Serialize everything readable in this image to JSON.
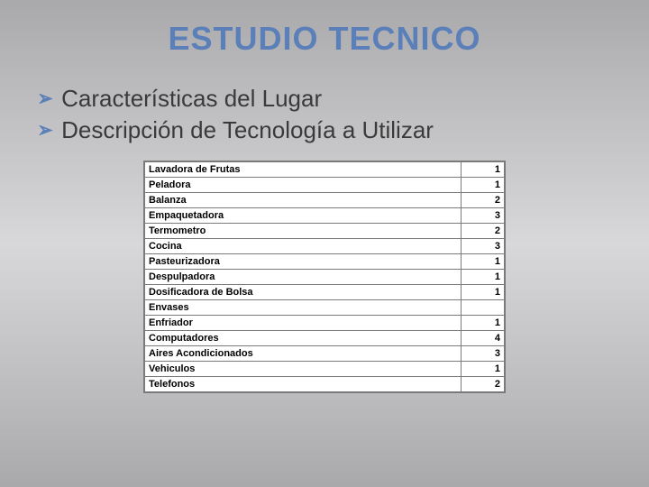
{
  "title": "ESTUDIO TECNICO",
  "bullets": [
    "Características del Lugar",
    "Descripción de Tecnología a Utilizar"
  ],
  "table": {
    "type": "table",
    "columns": [
      "name",
      "qty"
    ],
    "rows": [
      [
        "Lavadora de Frutas",
        "1"
      ],
      [
        "Peladora",
        "1"
      ],
      [
        "Balanza",
        "2"
      ],
      [
        "Empaquetadora",
        "3"
      ],
      [
        "Termometro",
        "2"
      ],
      [
        "Cocina",
        "3"
      ],
      [
        "Pasteurizadora",
        "1"
      ],
      [
        "Despulpadora",
        "1"
      ],
      [
        "Dosificadora de Bolsa",
        "1"
      ],
      [
        "Envases",
        ""
      ],
      [
        "Enfriador",
        "1"
      ],
      [
        "Computadores",
        "4"
      ],
      [
        "Aires Acondicionados",
        "3"
      ],
      [
        "Vehiculos",
        "1"
      ],
      [
        "Telefonos",
        "2"
      ]
    ],
    "border_color": "#7a7a7a",
    "background_color": "#ffffff",
    "font_family": "Verdana",
    "font_size_pt": 8,
    "font_weight": "bold"
  },
  "colors": {
    "title": "#5b7fb8",
    "bullet_marker": "#5b7fb8",
    "bullet_text": "#3a3a3a",
    "bg_gradient_top": "#a9a9ab",
    "bg_gradient_mid": "#d8d8da"
  },
  "typography": {
    "title_font": "Comic Sans MS",
    "title_size_pt": 27,
    "bullet_font": "Arial",
    "bullet_size_pt": 20
  }
}
